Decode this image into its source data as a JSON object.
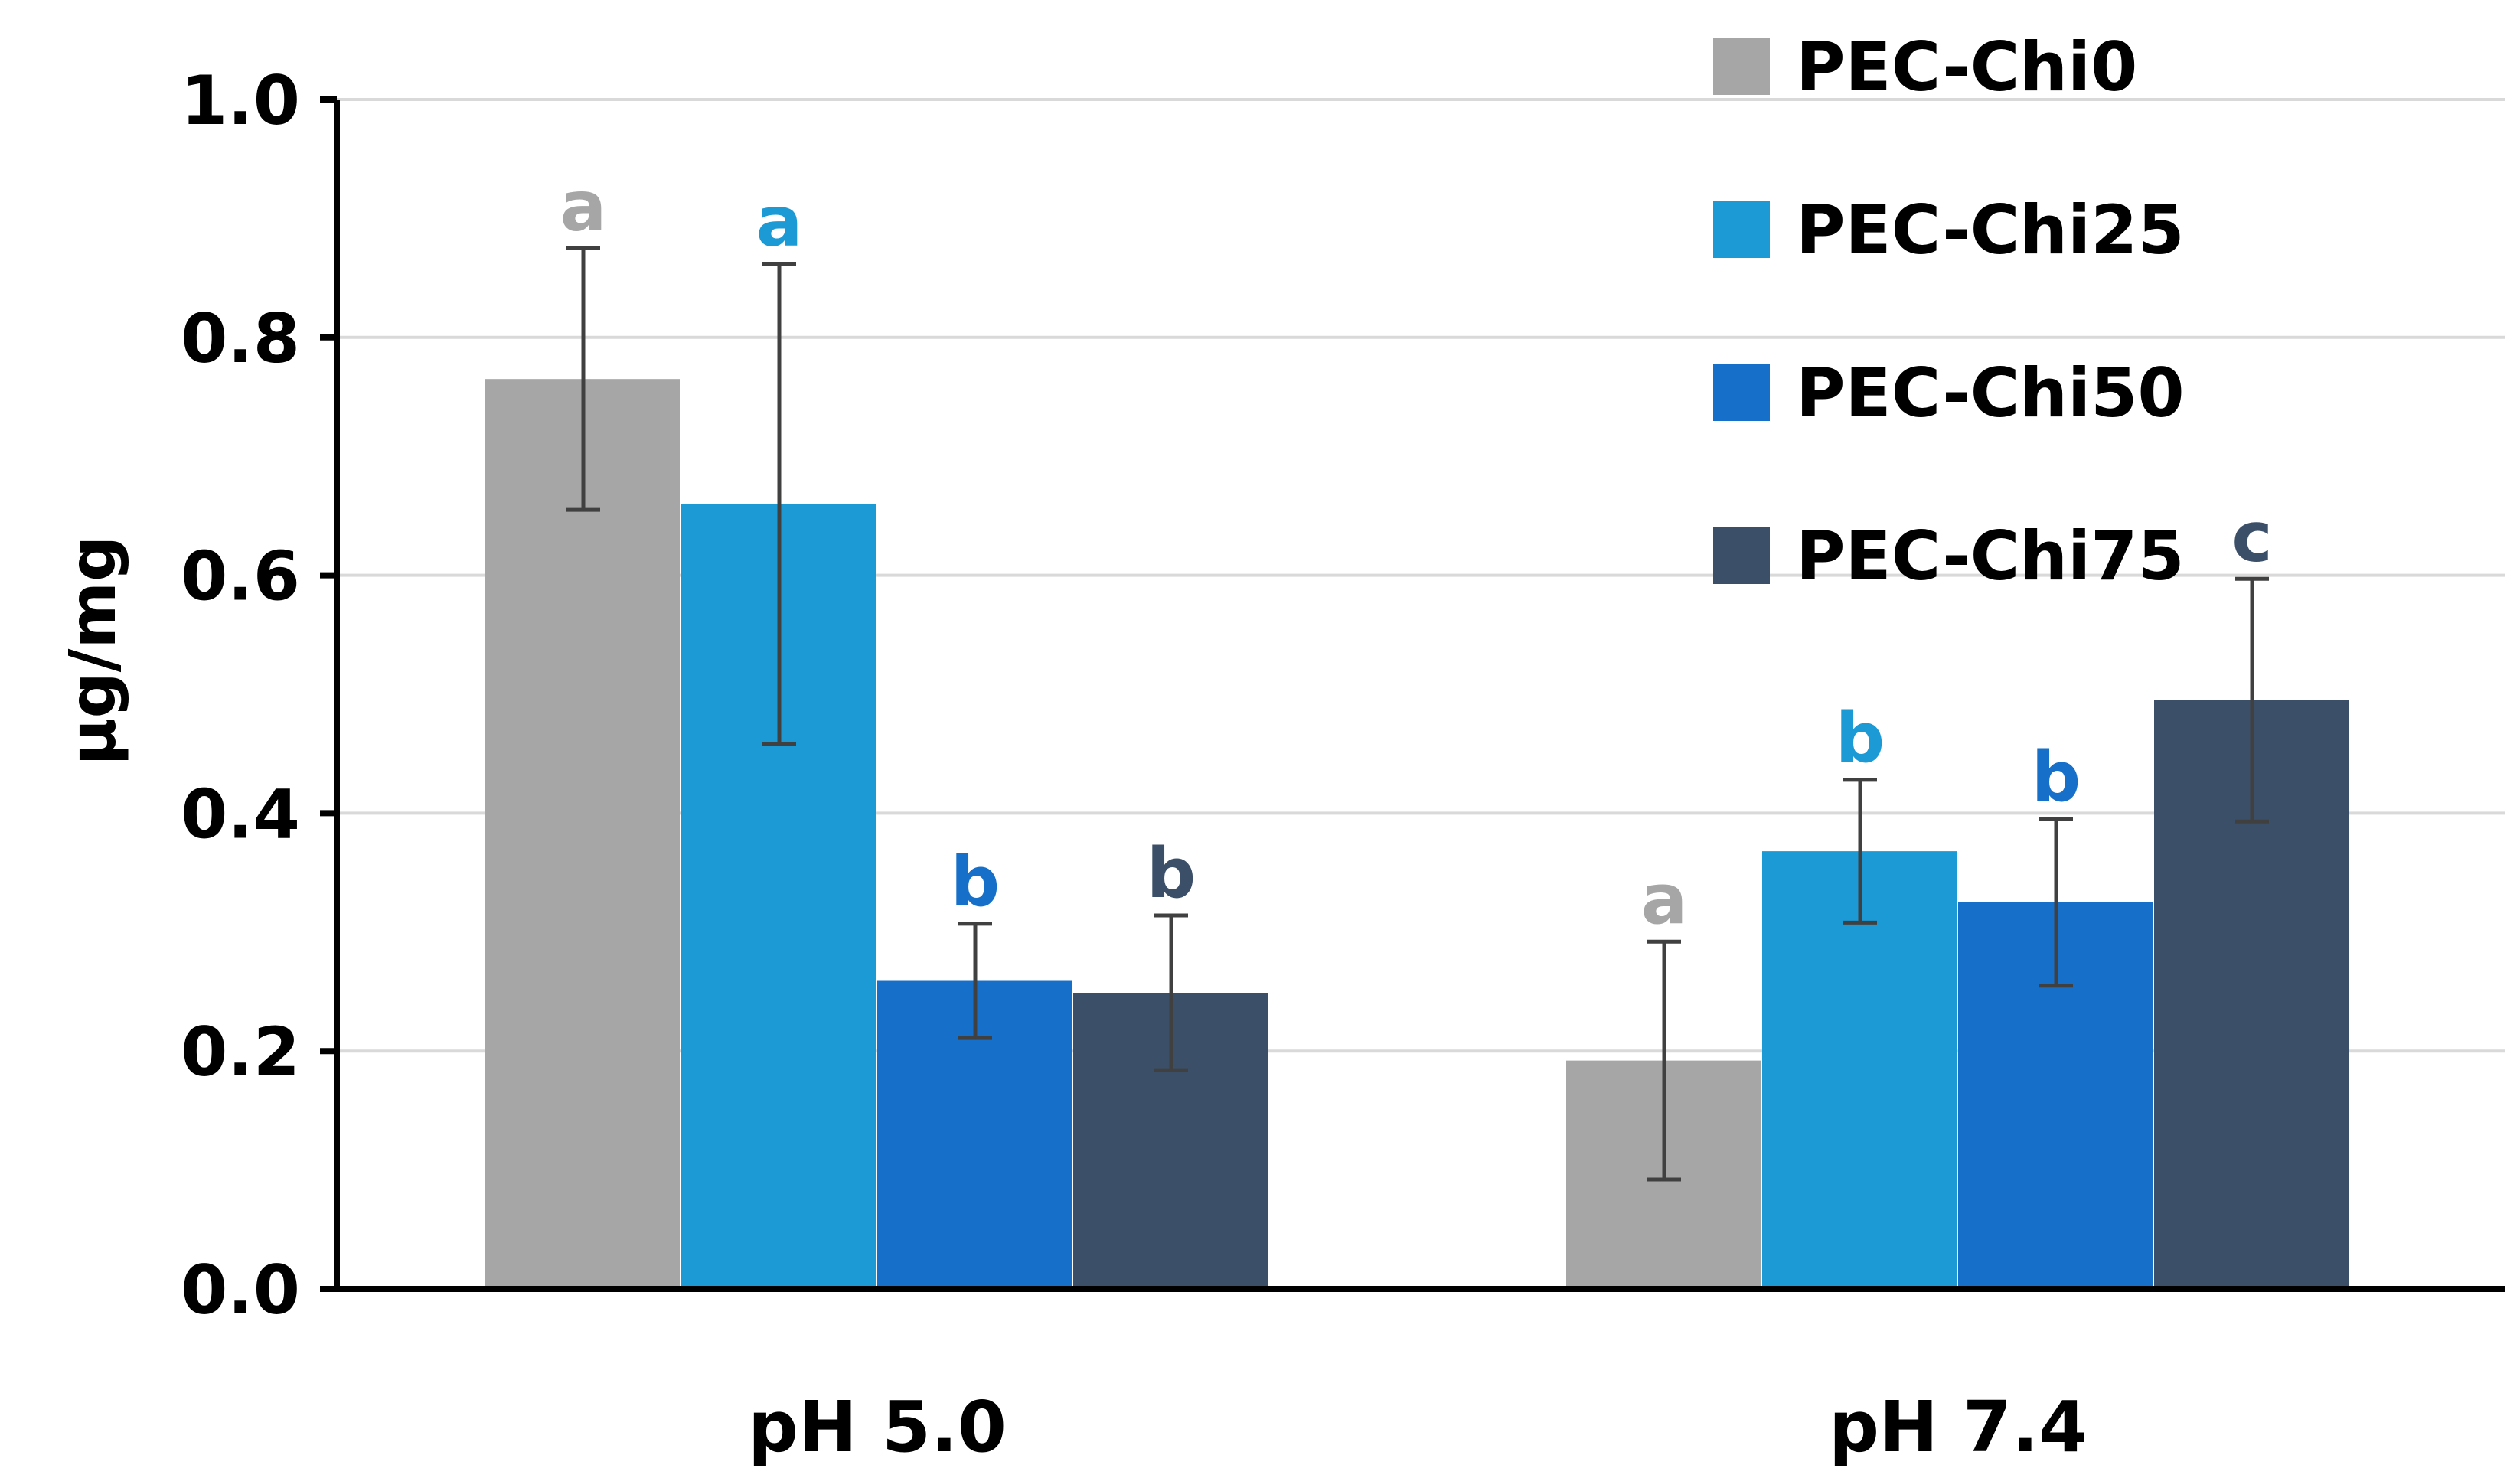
{
  "chart_data": {
    "type": "bar",
    "title": "",
    "xlabel": "",
    "ylabel": "µg/mg",
    "ylim": [
      0,
      1.0
    ],
    "yticks": [
      "0.0",
      "0.2",
      "0.4",
      "0.6",
      "0.8",
      "1.0"
    ],
    "ytick_values": [
      0.0,
      0.2,
      0.4,
      0.6,
      0.8,
      1.0
    ],
    "grid": true,
    "legend_position": "top-right",
    "categories": [
      "pH 5.0",
      "pH 7.4"
    ],
    "series": [
      {
        "name": "PEC-Chi0",
        "color": "#a6a6a6",
        "values": [
          0.765,
          0.192
        ],
        "errors": [
          0.11,
          0.1
        ],
        "labels": [
          "a",
          "a"
        ]
      },
      {
        "name": "PEC-Chi25",
        "color": "#1b9ad6",
        "values": [
          0.66,
          0.368
        ],
        "errors": [
          0.202,
          0.06
        ],
        "labels": [
          "a",
          "b"
        ]
      },
      {
        "name": "PEC-Chi50",
        "color": "#1670c9",
        "values": [
          0.259,
          0.325
        ],
        "errors": [
          0.048,
          0.07
        ],
        "labels": [
          "b",
          "b"
        ]
      },
      {
        "name": "PEC-Chi75",
        "color": "#3b5068",
        "values": [
          0.249,
          0.495
        ],
        "errors": [
          0.065,
          0.102
        ],
        "labels": [
          "b",
          "c"
        ]
      }
    ]
  }
}
